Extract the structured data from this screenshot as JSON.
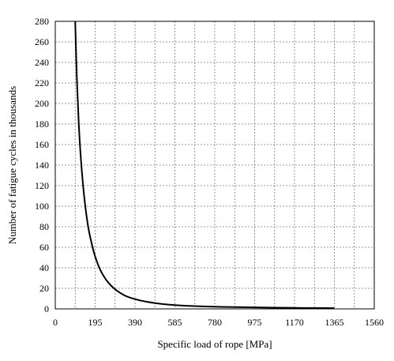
{
  "chart_data": {
    "type": "line",
    "xlabel": "Specific load of rope [MPa]",
    "ylabel": "Number of fatigue cycles in thousands",
    "xlim": [
      0,
      1560
    ],
    "ylim": [
      0,
      280
    ],
    "x_ticks": [
      0,
      195,
      390,
      585,
      780,
      975,
      1170,
      1365,
      1560
    ],
    "x_tick_labels": [
      "0",
      "195",
      "390",
      "585",
      "780",
      "975",
      "1170",
      "1365",
      "1560"
    ],
    "y_ticks": [
      0,
      20,
      40,
      60,
      80,
      100,
      120,
      140,
      160,
      180,
      200,
      220,
      240,
      260,
      280
    ],
    "y_tick_labels": [
      "0",
      "20",
      "40",
      "60",
      "80",
      "100",
      "120",
      "140",
      "160",
      "180",
      "200",
      "220",
      "240",
      "260",
      "280"
    ],
    "x_minor_step": 97.5,
    "grid": true,
    "series": [
      {
        "x": [
          97.5,
          105,
          115,
          125,
          140,
          160,
          180,
          195,
          220,
          250,
          290,
          340,
          390,
          450,
          520,
          585,
          680,
          780,
          880,
          975,
          1070,
          1170,
          1270,
          1365
        ],
        "y": [
          280,
          228,
          180,
          147,
          112,
          81,
          62,
          51,
          38,
          28,
          19.5,
          13,
          9.5,
          6.8,
          4.8,
          3.7,
          2.7,
          2.1,
          1.7,
          1.4,
          1.15,
          0.95,
          0.8,
          0.7
        ]
      }
    ]
  }
}
